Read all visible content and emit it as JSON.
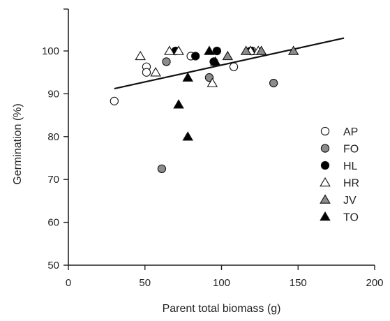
{
  "chart_data": {
    "type": "scatter",
    "title": "",
    "xlabel": "Parent total biomass (g)",
    "ylabel": "Germination (%)",
    "xlim": [
      0,
      200
    ],
    "ylim": [
      50,
      105
    ],
    "x_ticks": [
      0,
      50,
      100,
      150,
      200
    ],
    "y_ticks": [
      50,
      60,
      70,
      80,
      90,
      100
    ],
    "grid": false,
    "legend_position": "right",
    "series": [
      {
        "name": "AP",
        "marker": "circle",
        "fill": "#ffffff",
        "points": [
          [
            30,
            88.3
          ],
          [
            51,
            96.3
          ],
          [
            51,
            95.0
          ],
          [
            80,
            98.8
          ],
          [
            108,
            96.3
          ],
          [
            120,
            100
          ]
        ]
      },
      {
        "name": "FO",
        "marker": "circle",
        "fill": "#8c8c8c",
        "points": [
          [
            61,
            72.5
          ],
          [
            64,
            97.5
          ],
          [
            92,
            93.8
          ],
          [
            134,
            92.5
          ]
        ]
      },
      {
        "name": "HL",
        "marker": "circle",
        "fill": "#000000",
        "points": [
          [
            70,
            100
          ],
          [
            83,
            98.8
          ],
          [
            95,
            97.5
          ],
          [
            97,
            100
          ],
          [
            119,
            100
          ]
        ]
      },
      {
        "name": "HR",
        "marker": "triangle",
        "fill": "#ffffff",
        "points": [
          [
            47,
            98.8
          ],
          [
            57,
            95.0
          ],
          [
            66,
            100
          ],
          [
            72,
            100
          ],
          [
            94,
            92.5
          ],
          [
            119,
            100
          ],
          [
            124,
            100
          ]
        ]
      },
      {
        "name": "JV",
        "marker": "triangle",
        "fill": "#8c8c8c",
        "points": [
          [
            104,
            98.8
          ],
          [
            116,
            100
          ],
          [
            126,
            100
          ],
          [
            147,
            100
          ]
        ]
      },
      {
        "name": "TO",
        "marker": "triangle",
        "fill": "#000000",
        "points": [
          [
            72,
            87.5
          ],
          [
            78,
            93.8
          ],
          [
            78,
            80.0
          ],
          [
            92,
            100
          ],
          [
            96,
            97.5
          ]
        ]
      }
    ],
    "trendline": {
      "x": [
        30,
        180
      ],
      "y": [
        91.2,
        103.0
      ]
    }
  }
}
